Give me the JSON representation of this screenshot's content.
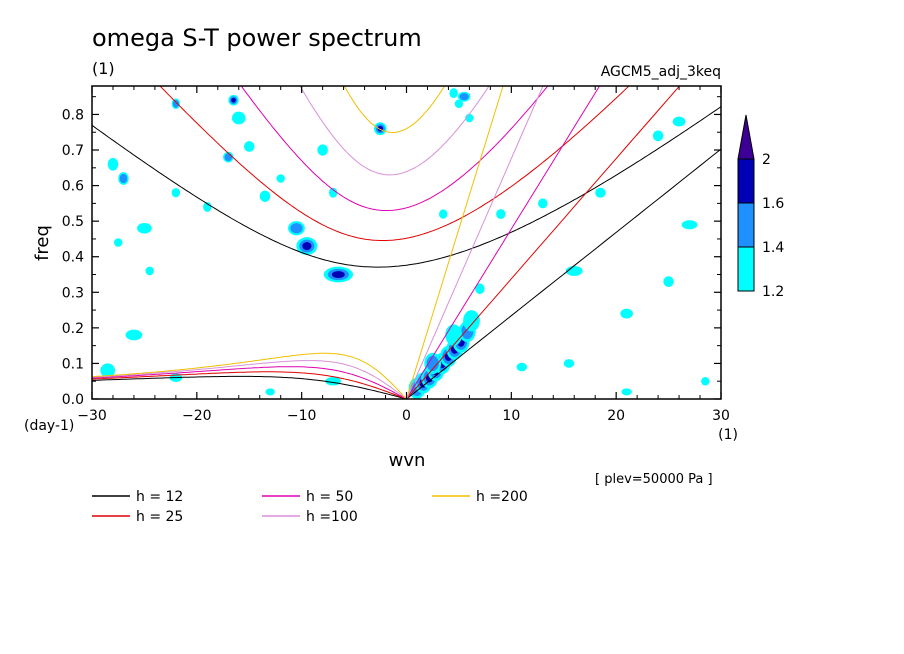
{
  "chart_data": {
    "type": "heatmap",
    "title": "omega S-T power spectrum",
    "units_label": "(1)",
    "model_label": "AGCM5_adj_3keq",
    "xlabel": "wvn",
    "ylabel": "freq",
    "x_units": "(1)",
    "y_units": "(day-1)",
    "level_label": "[ plev=50000 Pa ]",
    "xlim": [
      -30,
      30
    ],
    "ylim": [
      0,
      0.88
    ],
    "x_ticks": [
      -30,
      -20,
      -10,
      0,
      10,
      20,
      30
    ],
    "y_ticks": [
      0.0,
      0.1,
      0.2,
      0.3,
      0.4,
      0.5,
      0.6,
      0.7,
      0.8
    ],
    "x_tick_labels": [
      "−30",
      "−20",
      "−10",
      "0",
      "10",
      "20",
      "30"
    ],
    "y_tick_labels": [
      "0.0",
      "0.1",
      "0.2",
      "0.3",
      "0.4",
      "0.5",
      "0.6",
      "0.7",
      "0.8"
    ],
    "colorbar": {
      "levels": [
        1.2,
        1.4,
        1.6,
        2
      ],
      "labels": [
        "1.2",
        "1.4",
        "1.6",
        "2"
      ],
      "colors": [
        "#00ffff",
        "#1e90ff",
        "#0000b4",
        "#3c0096"
      ],
      "extend": "max"
    },
    "dispersion_curves": [
      {
        "name": "h = 12",
        "h": 12,
        "color": "#000000"
      },
      {
        "name": "h = 25",
        "h": 25,
        "color": "#e00000"
      },
      {
        "name": "h = 50",
        "h": 50,
        "color": "#e000b0"
      },
      {
        "name": "h =100",
        "h": 100,
        "color": "#d890d8"
      },
      {
        "name": "h =200",
        "h": 200,
        "color": "#f0c000"
      }
    ],
    "power_blobs": [
      {
        "x": -6.5,
        "y": 0.35,
        "w": 2.8,
        "h": 0.022,
        "v": 1.75
      },
      {
        "x": -9.5,
        "y": 0.43,
        "w": 2.0,
        "h": 0.025,
        "v": 1.65
      },
      {
        "x": -10.5,
        "y": 0.48,
        "w": 1.6,
        "h": 0.02,
        "v": 1.45
      },
      {
        "x": -16.5,
        "y": 0.84,
        "w": 1.0,
        "h": 0.015,
        "v": 1.6
      },
      {
        "x": -16.0,
        "y": 0.79,
        "w": 1.3,
        "h": 0.018,
        "v": 1.35
      },
      {
        "x": -17.0,
        "y": 0.68,
        "w": 1.0,
        "h": 0.015,
        "v": 1.45
      },
      {
        "x": -15.0,
        "y": 0.71,
        "w": 1.0,
        "h": 0.015,
        "v": 1.3
      },
      {
        "x": -22.0,
        "y": 0.83,
        "w": 0.8,
        "h": 0.015,
        "v": 1.45
      },
      {
        "x": -28.0,
        "y": 0.66,
        "w": 1.0,
        "h": 0.018,
        "v": 1.35
      },
      {
        "x": -27.0,
        "y": 0.62,
        "w": 1.0,
        "h": 0.018,
        "v": 1.45
      },
      {
        "x": -25.0,
        "y": 0.48,
        "w": 1.4,
        "h": 0.015,
        "v": 1.3
      },
      {
        "x": -27.5,
        "y": 0.44,
        "w": 0.8,
        "h": 0.012,
        "v": 1.25
      },
      {
        "x": -22.0,
        "y": 0.58,
        "w": 0.8,
        "h": 0.013,
        "v": 1.3
      },
      {
        "x": -19.0,
        "y": 0.54,
        "w": 0.8,
        "h": 0.014,
        "v": 1.3
      },
      {
        "x": -24.5,
        "y": 0.36,
        "w": 0.8,
        "h": 0.012,
        "v": 1.3
      },
      {
        "x": -26.0,
        "y": 0.18,
        "w": 1.6,
        "h": 0.015,
        "v": 1.3
      },
      {
        "x": -22.0,
        "y": 0.06,
        "w": 1.2,
        "h": 0.012,
        "v": 1.35
      },
      {
        "x": -28.5,
        "y": 0.08,
        "w": 1.4,
        "h": 0.02,
        "v": 1.3
      },
      {
        "x": -13.5,
        "y": 0.57,
        "w": 1.0,
        "h": 0.016,
        "v": 1.3
      },
      {
        "x": -12.0,
        "y": 0.62,
        "w": 0.8,
        "h": 0.012,
        "v": 1.3
      },
      {
        "x": -8.0,
        "y": 0.7,
        "w": 1.0,
        "h": 0.016,
        "v": 1.3
      },
      {
        "x": -7.0,
        "y": 0.58,
        "w": 0.8,
        "h": 0.014,
        "v": 1.3
      },
      {
        "x": -7.0,
        "y": 0.05,
        "w": 1.5,
        "h": 0.012,
        "v": 1.3
      },
      {
        "x": -13.0,
        "y": 0.02,
        "w": 0.9,
        "h": 0.01,
        "v": 1.3
      },
      {
        "x": -2.5,
        "y": 0.76,
        "w": 1.2,
        "h": 0.018,
        "v": 1.6
      },
      {
        "x": 4.5,
        "y": 0.86,
        "w": 0.8,
        "h": 0.014,
        "v": 1.3
      },
      {
        "x": 5.5,
        "y": 0.85,
        "w": 1.2,
        "h": 0.014,
        "v": 1.45
      },
      {
        "x": 5.0,
        "y": 0.83,
        "w": 0.8,
        "h": 0.012,
        "v": 1.3
      },
      {
        "x": 6.0,
        "y": 0.79,
        "w": 0.8,
        "h": 0.012,
        "v": 1.35
      },
      {
        "x": 3.5,
        "y": 0.52,
        "w": 0.8,
        "h": 0.013,
        "v": 1.3
      },
      {
        "x": 7.0,
        "y": 0.31,
        "w": 0.9,
        "h": 0.015,
        "v": 1.3
      },
      {
        "x": 9.0,
        "y": 0.52,
        "w": 0.9,
        "h": 0.014,
        "v": 1.3
      },
      {
        "x": 13.0,
        "y": 0.55,
        "w": 0.9,
        "h": 0.014,
        "v": 1.3
      },
      {
        "x": 16.0,
        "y": 0.36,
        "w": 1.6,
        "h": 0.014,
        "v": 1.35
      },
      {
        "x": 18.5,
        "y": 0.58,
        "w": 1.0,
        "h": 0.014,
        "v": 1.3
      },
      {
        "x": 21.0,
        "y": 0.24,
        "w": 1.2,
        "h": 0.014,
        "v": 1.3
      },
      {
        "x": 24.0,
        "y": 0.74,
        "w": 1.0,
        "h": 0.015,
        "v": 1.35
      },
      {
        "x": 26.0,
        "y": 0.78,
        "w": 1.2,
        "h": 0.014,
        "v": 1.3
      },
      {
        "x": 27.0,
        "y": 0.49,
        "w": 1.5,
        "h": 0.013,
        "v": 1.3
      },
      {
        "x": 25.0,
        "y": 0.33,
        "w": 1.0,
        "h": 0.015,
        "v": 1.3
      },
      {
        "x": 21.0,
        "y": 0.02,
        "w": 1.0,
        "h": 0.01,
        "v": 1.35
      },
      {
        "x": 11.0,
        "y": 0.09,
        "w": 1.0,
        "h": 0.012,
        "v": 1.3
      },
      {
        "x": 15.5,
        "y": 0.1,
        "w": 1.0,
        "h": 0.012,
        "v": 1.3
      },
      {
        "x": 28.5,
        "y": 0.05,
        "w": 0.8,
        "h": 0.012,
        "v": 1.3
      }
    ],
    "kelvin_band": [
      {
        "x": 1.0,
        "y": 0.03,
        "v": 1.5
      },
      {
        "x": 1.6,
        "y": 0.045,
        "v": 1.7
      },
      {
        "x": 2.2,
        "y": 0.06,
        "v": 1.75
      },
      {
        "x": 2.8,
        "y": 0.08,
        "v": 1.8
      },
      {
        "x": 3.4,
        "y": 0.1,
        "v": 1.85
      },
      {
        "x": 4.0,
        "y": 0.12,
        "v": 1.8
      },
      {
        "x": 4.6,
        "y": 0.14,
        "v": 1.75
      },
      {
        "x": 5.2,
        "y": 0.16,
        "v": 1.65
      },
      {
        "x": 5.8,
        "y": 0.19,
        "v": 1.5
      },
      {
        "x": 6.2,
        "y": 0.22,
        "v": 1.35
      },
      {
        "x": 2.5,
        "y": 0.1,
        "v": 1.4
      },
      {
        "x": 4.5,
        "y": 0.18,
        "v": 1.35
      }
    ]
  }
}
